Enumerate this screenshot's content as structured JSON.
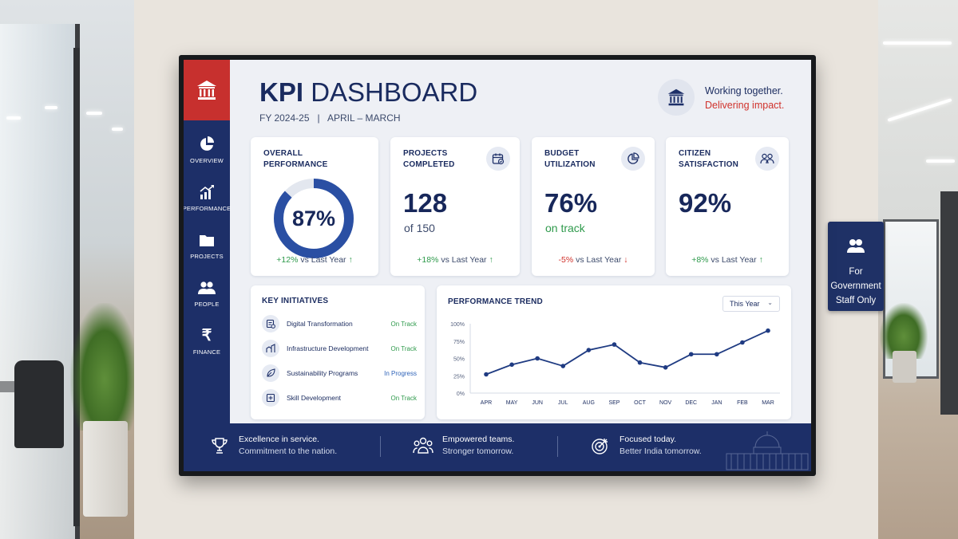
{
  "sidebar": {
    "items": [
      {
        "label": "OVERVIEW",
        "icon": "pie-chart-icon"
      },
      {
        "label": "PERFORMANCE",
        "icon": "bar-growth-icon"
      },
      {
        "label": "PROJECTS",
        "icon": "folder-icon"
      },
      {
        "label": "PEOPLE",
        "icon": "people-icon"
      },
      {
        "label": "FINANCE",
        "icon": "rupee-icon",
        "glyph": "₹"
      }
    ]
  },
  "header": {
    "title_bold": "KPI",
    "title_rest": "DASHBOARD",
    "subtitle": "FY 2024-25   |   APRIL – MARCH",
    "tagline_line1": "Working together.",
    "tagline_line2": "Delivering impact."
  },
  "kpis": {
    "overall": {
      "label": "OVERALL PERFORMANCE",
      "value": "87%",
      "fraction": 0.87,
      "trend_value": "+12%",
      "trend_suffix": "vs Last Year",
      "arrow": "↑"
    },
    "projects": {
      "label": "PROJECTS COMPLETED",
      "value": "128",
      "sub": "of 150",
      "trend_value": "+18%",
      "trend_suffix": "vs Last Year",
      "arrow": "↑"
    },
    "budget": {
      "label": "BUDGET UTILIZATION",
      "value": "76%",
      "sub": "on track",
      "trend_value": "-5%",
      "trend_suffix": "vs Last Year",
      "arrow": "↓"
    },
    "citizen": {
      "label": "CITIZEN SATISFACTION",
      "value": "92%",
      "trend_value": "+8%",
      "trend_suffix": "vs Last Year",
      "arrow": "↑"
    }
  },
  "initiatives": {
    "title": "KEY INITIATIVES",
    "items": [
      {
        "name": "Digital Transformation",
        "status": "On Track"
      },
      {
        "name": "Infrastructure Development",
        "status": "On Track"
      },
      {
        "name": "Sustainability Programs",
        "status": "In Progress"
      },
      {
        "name": "Skill Development",
        "status": "On Track"
      }
    ]
  },
  "trend": {
    "title": "PERFORMANCE TREND",
    "period": "This Year"
  },
  "chart_data": {
    "type": "line",
    "title": "PERFORMANCE TREND",
    "categories": [
      "APR",
      "MAY",
      "JUN",
      "JUL",
      "AUG",
      "SEP",
      "OCT",
      "NOV",
      "DEC",
      "JAN",
      "FEB",
      "MAR"
    ],
    "values": [
      27,
      41,
      50,
      39,
      62,
      70,
      44,
      37,
      56,
      56,
      73,
      90
    ],
    "y_ticks": [
      "100%",
      "75%",
      "50%",
      "25%",
      "0%"
    ],
    "ylim": [
      0,
      100
    ],
    "grid": false,
    "color": "#1f3b82"
  },
  "footer": {
    "items": [
      {
        "line1": "Excellence in service.",
        "line2": "Commitment to the nation.",
        "icon": "trophy-icon"
      },
      {
        "line1": "Empowered teams.",
        "line2": "Stronger tomorrow.",
        "icon": "team-icon"
      },
      {
        "line1": "Focused today.",
        "line2": "Better India tomorrow.",
        "icon": "target-icon"
      }
    ]
  },
  "wall_sign": {
    "text": "For\nGovernment\nStaff Only"
  },
  "colors": {
    "navy": "#1d2f68",
    "red": "#c7302e",
    "green": "#2f9a4c",
    "blue": "#2f63b8"
  }
}
